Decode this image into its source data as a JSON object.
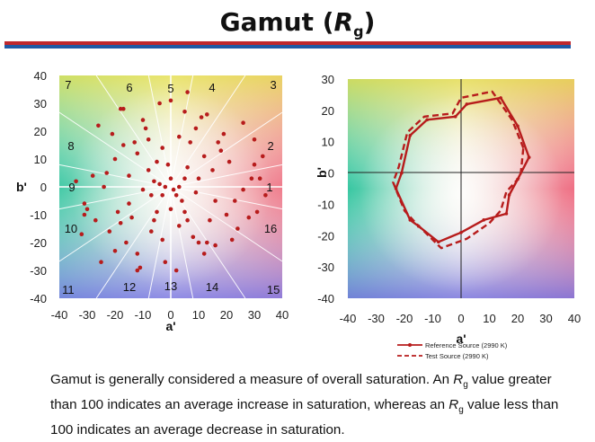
{
  "title": {
    "main": "Gamut (",
    "symbol": "R",
    "subscript": "g",
    "close": ")"
  },
  "colors": {
    "red_band": "#c0282d",
    "blue_band": "#1f5aa6",
    "series": "#b71c1c"
  },
  "chart_data": [
    {
      "type": "scatter",
      "name": "sample-chromaticity-scatter",
      "xlabel": "a'",
      "ylabel": "b'",
      "xlim": [
        -40,
        40
      ],
      "ylim": [
        -40,
        40
      ],
      "xticks": [
        "-40",
        "-30",
        "-20",
        "-10",
        "0",
        "10",
        "20",
        "30",
        "40"
      ],
      "yticks": [
        "40",
        "30",
        "20",
        "10",
        "0",
        "-10",
        "-20",
        "-30",
        "-40"
      ],
      "sector_labels": [
        "1",
        "2",
        "3",
        "4",
        "5",
        "6",
        "7",
        "8",
        "9",
        "10",
        "11",
        "12",
        "13",
        "14",
        "15",
        "16"
      ],
      "points": [
        [
          -4,
          1
        ],
        [
          -2,
          0
        ],
        [
          1,
          -1
        ],
        [
          3,
          0
        ],
        [
          0,
          3
        ],
        [
          -3,
          -3
        ],
        [
          2,
          -3
        ],
        [
          -6,
          2
        ],
        [
          5,
          3
        ],
        [
          4,
          -5
        ],
        [
          -7,
          -3
        ],
        [
          -8,
          6
        ],
        [
          6,
          7
        ],
        [
          9,
          -2
        ],
        [
          -10,
          -1
        ],
        [
          10,
          3
        ],
        [
          -1,
          8
        ],
        [
          0,
          -8
        ],
        [
          -5,
          9
        ],
        [
          -5,
          -9
        ],
        [
          5,
          -9
        ],
        [
          -12,
          12
        ],
        [
          12,
          11
        ],
        [
          -14,
          -11
        ],
        [
          14,
          -12
        ],
        [
          -3,
          14
        ],
        [
          3,
          -14
        ],
        [
          -15,
          4
        ],
        [
          16,
          -5
        ],
        [
          -20,
          10
        ],
        [
          21,
          9
        ],
        [
          -19,
          -9
        ],
        [
          20,
          -10
        ],
        [
          -8,
          17
        ],
        [
          8,
          -18
        ],
        [
          -17,
          15
        ],
        [
          17,
          16
        ],
        [
          -22,
          -16
        ],
        [
          24,
          -15
        ],
        [
          -16,
          -20
        ],
        [
          16,
          -21
        ],
        [
          -10,
          24
        ],
        [
          11,
          25
        ],
        [
          -12,
          -24
        ],
        [
          12,
          -24
        ],
        [
          -24,
          0
        ],
        [
          26,
          -1
        ],
        [
          -28,
          4
        ],
        [
          29,
          3
        ],
        [
          -27,
          -12
        ],
        [
          28,
          -11
        ],
        [
          -26,
          22
        ],
        [
          26,
          23
        ],
        [
          -25,
          -27
        ],
        [
          5,
          27
        ],
        [
          -4,
          30
        ],
        [
          0,
          31
        ],
        [
          -2,
          -27
        ],
        [
          2,
          -30
        ],
        [
          6,
          34
        ],
        [
          13,
          26
        ],
        [
          19,
          19
        ],
        [
          30,
          8
        ],
        [
          31,
          -9
        ],
        [
          -31,
          -10
        ],
        [
          -32,
          -17
        ],
        [
          30,
          17
        ],
        [
          -18,
          28
        ],
        [
          -17,
          28
        ],
        [
          -12,
          -30
        ],
        [
          -11,
          -29
        ],
        [
          -30,
          -8
        ],
        [
          -31,
          -6
        ],
        [
          23,
          -5
        ],
        [
          -23,
          5
        ],
        [
          33,
          11
        ],
        [
          32,
          3
        ],
        [
          -20,
          -23
        ],
        [
          -9,
          21
        ],
        [
          9,
          21
        ],
        [
          -6,
          -12
        ],
        [
          6,
          -12
        ],
        [
          -13,
          16
        ],
        [
          13,
          -20
        ],
        [
          18,
          13
        ],
        [
          -18,
          -13
        ],
        [
          7,
          16
        ],
        [
          -7,
          -16
        ],
        [
          22,
          -19
        ],
        [
          -21,
          19
        ],
        [
          34,
          -3
        ],
        [
          -34,
          2
        ],
        [
          3,
          18
        ],
        [
          -3,
          -19
        ],
        [
          15,
          6
        ],
        [
          -15,
          -6
        ],
        [
          10,
          -20
        ]
      ]
    },
    {
      "type": "line",
      "name": "color-vector-graphic",
      "xlabel": "a'",
      "ylabel": "b'",
      "xlim": [
        -40,
        40
      ],
      "ylim": [
        -40,
        30
      ],
      "xticks": [
        "-40",
        "-30",
        "-20",
        "-10",
        "0",
        "10",
        "20",
        "30",
        "40"
      ],
      "yticks": [
        "30",
        "20",
        "10",
        "0",
        "-10",
        "-20",
        "-30",
        "-40"
      ],
      "series": [
        {
          "name": "Reference Source (2990 K)",
          "style": "solid",
          "points": [
            [
              24,
              5
            ],
            [
              20,
              15
            ],
            [
              14,
              24
            ],
            [
              2,
              22
            ],
            [
              -2,
              18
            ],
            [
              -12,
              17
            ],
            [
              -18,
              12
            ],
            [
              -21,
              0
            ],
            [
              -23,
              -5
            ],
            [
              -18,
              -15
            ],
            [
              -15,
              -17
            ],
            [
              -8,
              -22
            ],
            [
              0,
              -19
            ],
            [
              8,
              -15
            ],
            [
              16,
              -13
            ],
            [
              17,
              -7
            ],
            [
              20,
              -2
            ],
            [
              24,
              5
            ]
          ]
        },
        {
          "name": "Test Source (2990 K)",
          "style": "dashed",
          "points": [
            [
              22,
              8
            ],
            [
              18,
              17
            ],
            [
              11,
              26
            ],
            [
              0,
              24
            ],
            [
              -3,
              19
            ],
            [
              -13,
              18
            ],
            [
              -19,
              13
            ],
            [
              -22,
              2
            ],
            [
              -24,
              -3
            ],
            [
              -20,
              -12
            ],
            [
              -16,
              -16
            ],
            [
              -7,
              -24
            ],
            [
              2,
              -21
            ],
            [
              10,
              -16
            ],
            [
              14,
              -12
            ],
            [
              16,
              -6
            ],
            [
              21,
              -1
            ],
            [
              22,
              8
            ]
          ]
        }
      ],
      "legend": [
        "Reference Source (2990 K)",
        "Test Source (2990 K)"
      ]
    }
  ],
  "caption": {
    "part1": "Gamut is generally considered a measure of overall saturation. An ",
    "rg1_symbol": "R",
    "rg1_sub": "g",
    "part2": " value greater than 100 indicates an average increase in saturation, whereas an ",
    "rg2_symbol": "R",
    "rg2_sub": "g",
    "part3": " value less than 100 indicates an average decrease in saturation."
  }
}
